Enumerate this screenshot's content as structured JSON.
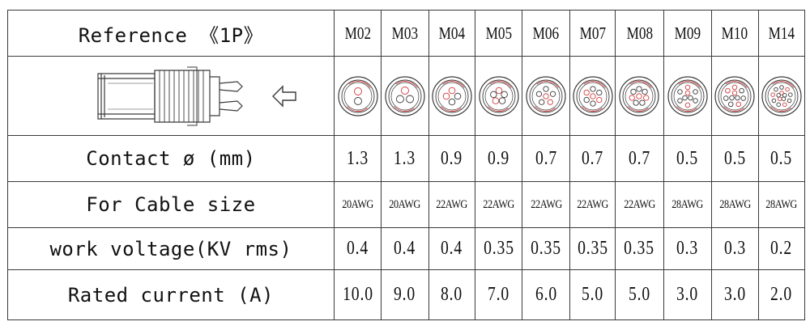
{
  "table": {
    "reference_label": "Reference 《1P》",
    "contact_label": "Contact ø (mm)",
    "cable_label": "For Cable size",
    "voltage_label": "work voltage(KV rms)",
    "current_label": "Rated current (A)",
    "models": [
      "M02",
      "M03",
      "M04",
      "M05",
      "M06",
      "M07",
      "M08",
      "M09",
      "M10",
      "M14"
    ],
    "pin_counts": [
      2,
      3,
      4,
      5,
      6,
      7,
      8,
      9,
      10,
      14
    ],
    "contact_diameter": [
      "1.3",
      "1.3",
      "0.9",
      "0.9",
      "0.7",
      "0.7",
      "0.7",
      "0.5",
      "0.5",
      "0.5"
    ],
    "cable_size": [
      "20AWG",
      "20AWG",
      "22AWG",
      "22AWG",
      "22AWG",
      "22AWG",
      "22AWG",
      "28AWG",
      "28AWG",
      "28AWG"
    ],
    "work_voltage": [
      "0.4",
      "0.4",
      "0.4",
      "0.35",
      "0.35",
      "0.35",
      "0.35",
      "0.3",
      "0.3",
      "0.2"
    ],
    "rated_current": [
      "10.0",
      "9.0",
      "8.0",
      "7.0",
      "6.0",
      "5.0",
      "5.0",
      "3.0",
      "3.0",
      "2.0"
    ]
  },
  "icons": {
    "connector": "connector-side-view-icon",
    "arrow": "left-arrow-outline-icon",
    "face": "connector-pin-face-icon"
  },
  "colors": {
    "line": "#3a3a3a",
    "accent_red": "#d23a3a"
  }
}
